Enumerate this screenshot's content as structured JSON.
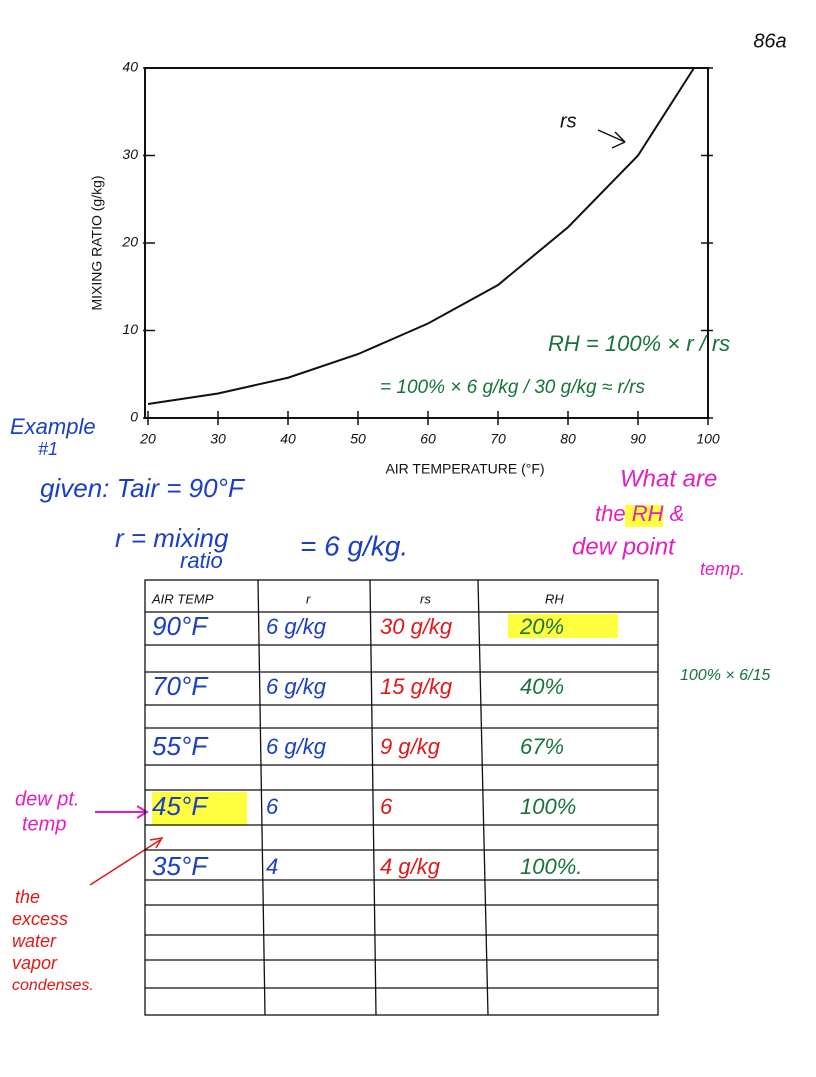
{
  "page_number": "86a",
  "chart_data": {
    "type": "line",
    "xlabel": "AIR TEMPERATURE (°F)",
    "ylabel": "MIXING RATIO (g/kg)",
    "x": [
      20,
      30,
      40,
      50,
      60,
      70,
      80,
      90,
      98
    ],
    "series": [
      {
        "name": "rs",
        "color": "#111111",
        "values": [
          1.6,
          2.8,
          4.6,
          7.3,
          10.8,
          15.2,
          21.8,
          30,
          40
        ]
      }
    ],
    "xlim": [
      20,
      100
    ],
    "xticks": [
      20,
      30,
      40,
      50,
      60,
      70,
      80,
      90,
      100
    ],
    "ylim": [
      0,
      40
    ],
    "yticks": [
      0,
      10,
      20,
      30,
      40
    ],
    "annotations": [
      "RH = 100% × r / rs",
      "= 100% × 6 g/kg / 30 g/kg ≈ r/rs"
    ]
  },
  "notes": {
    "example": [
      "Example",
      "#1"
    ],
    "given": "given: Tair = 90°F",
    "mixing": [
      "r = mixing",
      "ratio",
      "= 6 g/kg."
    ],
    "question": [
      "What are",
      "the RH &",
      "dew point",
      "temp."
    ],
    "dew": [
      "dew pt.",
      "temp"
    ],
    "excess": [
      "the",
      "excess",
      "water",
      "vapor",
      "condenses."
    ],
    "calc": "100% × 6/15"
  },
  "table": {
    "header": [
      "AIR TEMP",
      "r",
      "rs",
      "RH"
    ],
    "rows": [
      [
        "90°F",
        "6 g/kg",
        "30 g/kg",
        "20%"
      ],
      [
        "70°F",
        "6 g/kg",
        "15 g/kg",
        "40%"
      ],
      [
        "55°F",
        "6 g/kg",
        "9 g/kg",
        "67%"
      ],
      [
        "45°F",
        "6",
        "6",
        "100%"
      ],
      [
        "35°F",
        "4",
        "4 g/kg",
        "100%."
      ]
    ]
  }
}
